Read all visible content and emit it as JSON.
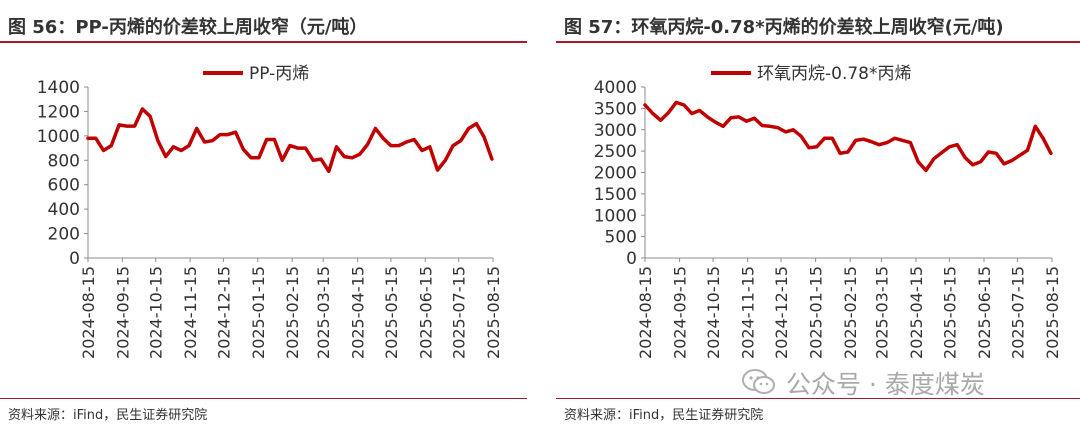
{
  "charts": [
    {
      "title": "图 56：PP-丙烯的价差较上周收窄（元/吨）",
      "source": "资料来源：iFind，民生证券研究院"
    },
    {
      "title": "图 57：环氧丙烷-0.78*丙烯的价差较上周收窄(元/吨)",
      "source": "资料来源：iFind，民生证券研究院"
    }
  ],
  "watermark": {
    "text": "公众号 · 泰度煤炭",
    "icon": "wechat-icon"
  },
  "chart_data": [
    {
      "type": "line",
      "title": "图 56：PP-丙烯的价差较上周收窄（元/吨）",
      "xlabel": "",
      "ylabel": "",
      "ylim": [
        0,
        1400
      ],
      "yticks": [
        0,
        200,
        400,
        600,
        800,
        1000,
        1200,
        1400
      ],
      "xtick_labels": [
        "2024-08-15",
        "2024-09-15",
        "2024-10-15",
        "2024-11-15",
        "2024-12-15",
        "2025-01-15",
        "2025-02-15",
        "2025-03-15",
        "2025-04-15",
        "2025-05-15",
        "2025-06-15",
        "2025-07-15",
        "2025-08-15"
      ],
      "grid": false,
      "legend": "top-center",
      "color": "#c00000",
      "series": [
        {
          "name": "PP-丙烯",
          "x": [
            "2024-08-15",
            "2024-08-22",
            "2024-08-29",
            "2024-09-05",
            "2024-09-12",
            "2024-09-19",
            "2024-09-26",
            "2024-10-03",
            "2024-10-10",
            "2024-10-17",
            "2024-10-24",
            "2024-10-31",
            "2024-11-07",
            "2024-11-14",
            "2024-11-21",
            "2024-11-28",
            "2024-12-05",
            "2024-12-12",
            "2024-12-19",
            "2024-12-26",
            "2025-01-02",
            "2025-01-09",
            "2025-01-16",
            "2025-01-23",
            "2025-01-30",
            "2025-02-06",
            "2025-02-13",
            "2025-02-20",
            "2025-02-27",
            "2025-03-06",
            "2025-03-13",
            "2025-03-20",
            "2025-03-27",
            "2025-04-03",
            "2025-04-10",
            "2025-04-17",
            "2025-04-24",
            "2025-05-01",
            "2025-05-08",
            "2025-05-15",
            "2025-05-22",
            "2025-05-29",
            "2025-06-05",
            "2025-06-12",
            "2025-06-19",
            "2025-06-26",
            "2025-07-03",
            "2025-07-10",
            "2025-07-17",
            "2025-07-24",
            "2025-07-31",
            "2025-08-07",
            "2025-08-14"
          ],
          "values": [
            980,
            980,
            880,
            920,
            1090,
            1080,
            1080,
            1220,
            1160,
            960,
            830,
            910,
            880,
            920,
            1060,
            950,
            960,
            1010,
            1010,
            1030,
            890,
            820,
            820,
            970,
            970,
            800,
            920,
            900,
            900,
            800,
            810,
            710,
            910,
            830,
            820,
            850,
            930,
            1060,
            980,
            920,
            920,
            950,
            970,
            880,
            910,
            720,
            800,
            920,
            960,
            1060,
            1100,
            990,
            810
          ]
        }
      ]
    },
    {
      "type": "line",
      "title": "图 57：环氧丙烷-0.78*丙烯的价差较上周收窄(元/吨)",
      "xlabel": "",
      "ylabel": "",
      "ylim": [
        0,
        4000
      ],
      "yticks": [
        0,
        500,
        1000,
        1500,
        2000,
        2500,
        3000,
        3500,
        4000
      ],
      "xtick_labels": [
        "2024-08-15",
        "2024-09-15",
        "2024-10-15",
        "2024-11-15",
        "2024-12-15",
        "2025-01-15",
        "2025-02-15",
        "2025-03-15",
        "2025-04-15",
        "2025-05-15",
        "2025-06-15",
        "2025-07-15",
        "2025-08-15"
      ],
      "grid": false,
      "legend": "top-center",
      "color": "#c00000",
      "series": [
        {
          "name": "环氧丙烷-0.78*丙烯",
          "x": [
            "2024-08-15",
            "2024-08-22",
            "2024-08-29",
            "2024-09-05",
            "2024-09-12",
            "2024-09-19",
            "2024-09-26",
            "2024-10-03",
            "2024-10-10",
            "2024-10-17",
            "2024-10-24",
            "2024-10-31",
            "2024-11-07",
            "2024-11-14",
            "2024-11-21",
            "2024-11-28",
            "2024-12-05",
            "2024-12-12",
            "2024-12-19",
            "2024-12-26",
            "2025-01-02",
            "2025-01-09",
            "2025-01-16",
            "2025-01-23",
            "2025-01-30",
            "2025-02-06",
            "2025-02-13",
            "2025-02-20",
            "2025-02-27",
            "2025-03-06",
            "2025-03-13",
            "2025-03-20",
            "2025-03-27",
            "2025-04-03",
            "2025-04-10",
            "2025-04-17",
            "2025-04-24",
            "2025-05-01",
            "2025-05-08",
            "2025-05-15",
            "2025-05-22",
            "2025-05-29",
            "2025-06-05",
            "2025-06-12",
            "2025-06-19",
            "2025-06-26",
            "2025-07-03",
            "2025-07-10",
            "2025-07-17",
            "2025-07-24",
            "2025-07-31",
            "2025-08-07",
            "2025-08-14"
          ],
          "values": [
            3580,
            3380,
            3220,
            3400,
            3640,
            3580,
            3380,
            3450,
            3300,
            3180,
            3080,
            3280,
            3300,
            3200,
            3270,
            3100,
            3080,
            3050,
            2950,
            3000,
            2850,
            2580,
            2600,
            2800,
            2800,
            2450,
            2480,
            2750,
            2780,
            2720,
            2650,
            2700,
            2800,
            2750,
            2700,
            2250,
            2050,
            2320,
            2460,
            2600,
            2650,
            2350,
            2180,
            2250,
            2480,
            2450,
            2200,
            2280,
            2400,
            2520,
            3080,
            2800,
            2450
          ]
        }
      ]
    }
  ]
}
